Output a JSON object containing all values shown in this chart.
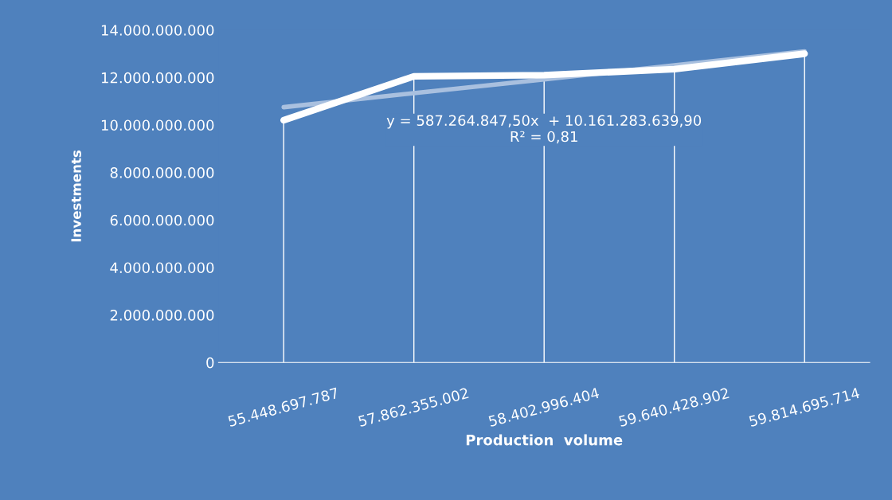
{
  "chart_data": {
    "type": "line",
    "xlabel": "Production  volume",
    "ylabel": "Investments",
    "categories": [
      "55.448.697.787",
      "57.862.355.002",
      "58.402.996.404",
      "59.640.428.902",
      "59.814.695.714"
    ],
    "series": [
      {
        "color": "#ffffff",
        "values": [
          10200000000,
          12050000000,
          12100000000,
          12350000000,
          13000000000
        ]
      },
      {
        "color": "#a9c0df",
        "values": [
          10750000000,
          11340000000,
          11920000000,
          12510000000,
          13100000000
        ]
      }
    ],
    "ylim": [
      0,
      14000000000
    ],
    "yticks": [
      {
        "value": 0,
        "label": "0"
      },
      {
        "value": 2000000000,
        "label": "2.000.000.000"
      },
      {
        "value": 4000000000,
        "label": "4.000.000.000"
      },
      {
        "value": 6000000000,
        "label": "6.000.000.000"
      },
      {
        "value": 8000000000,
        "label": "8.000.000.000"
      },
      {
        "value": 10000000000,
        "label": "10.000.000.000"
      },
      {
        "value": 12000000000,
        "label": "12.000.000.000"
      },
      {
        "value": 14000000000,
        "label": "14.000.000.000"
      }
    ],
    "annotations": [
      "y = 587.264.847,50x  + 10.161.283.639,90\nR² = 0,81"
    ],
    "grid": "x",
    "legend": false,
    "marker": "none",
    "line_style": "solid"
  }
}
